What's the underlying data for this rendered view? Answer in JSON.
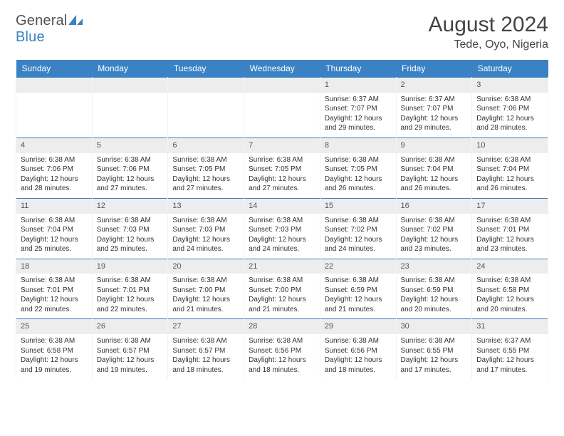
{
  "brand": {
    "part1": "General",
    "part2": "Blue"
  },
  "title": "August 2024",
  "location": "Tede, Oyo, Nigeria",
  "colors": {
    "header_bg": "#3a82c4",
    "header_fg": "#ffffff",
    "daynum_bg": "#ededed",
    "row_divider": "#3a82c4",
    "page_bg": "#ffffff",
    "text": "#333333"
  },
  "day_headers": [
    "Sunday",
    "Monday",
    "Tuesday",
    "Wednesday",
    "Thursday",
    "Friday",
    "Saturday"
  ],
  "weeks": [
    [
      null,
      null,
      null,
      null,
      {
        "n": "1",
        "sunrise": "6:37 AM",
        "sunset": "7:07 PM",
        "daylight": "12 hours and 29 minutes."
      },
      {
        "n": "2",
        "sunrise": "6:37 AM",
        "sunset": "7:07 PM",
        "daylight": "12 hours and 29 minutes."
      },
      {
        "n": "3",
        "sunrise": "6:38 AM",
        "sunset": "7:06 PM",
        "daylight": "12 hours and 28 minutes."
      }
    ],
    [
      {
        "n": "4",
        "sunrise": "6:38 AM",
        "sunset": "7:06 PM",
        "daylight": "12 hours and 28 minutes."
      },
      {
        "n": "5",
        "sunrise": "6:38 AM",
        "sunset": "7:06 PM",
        "daylight": "12 hours and 27 minutes."
      },
      {
        "n": "6",
        "sunrise": "6:38 AM",
        "sunset": "7:05 PM",
        "daylight": "12 hours and 27 minutes."
      },
      {
        "n": "7",
        "sunrise": "6:38 AM",
        "sunset": "7:05 PM",
        "daylight": "12 hours and 27 minutes."
      },
      {
        "n": "8",
        "sunrise": "6:38 AM",
        "sunset": "7:05 PM",
        "daylight": "12 hours and 26 minutes."
      },
      {
        "n": "9",
        "sunrise": "6:38 AM",
        "sunset": "7:04 PM",
        "daylight": "12 hours and 26 minutes."
      },
      {
        "n": "10",
        "sunrise": "6:38 AM",
        "sunset": "7:04 PM",
        "daylight": "12 hours and 26 minutes."
      }
    ],
    [
      {
        "n": "11",
        "sunrise": "6:38 AM",
        "sunset": "7:04 PM",
        "daylight": "12 hours and 25 minutes."
      },
      {
        "n": "12",
        "sunrise": "6:38 AM",
        "sunset": "7:03 PM",
        "daylight": "12 hours and 25 minutes."
      },
      {
        "n": "13",
        "sunrise": "6:38 AM",
        "sunset": "7:03 PM",
        "daylight": "12 hours and 24 minutes."
      },
      {
        "n": "14",
        "sunrise": "6:38 AM",
        "sunset": "7:03 PM",
        "daylight": "12 hours and 24 minutes."
      },
      {
        "n": "15",
        "sunrise": "6:38 AM",
        "sunset": "7:02 PM",
        "daylight": "12 hours and 24 minutes."
      },
      {
        "n": "16",
        "sunrise": "6:38 AM",
        "sunset": "7:02 PM",
        "daylight": "12 hours and 23 minutes."
      },
      {
        "n": "17",
        "sunrise": "6:38 AM",
        "sunset": "7:01 PM",
        "daylight": "12 hours and 23 minutes."
      }
    ],
    [
      {
        "n": "18",
        "sunrise": "6:38 AM",
        "sunset": "7:01 PM",
        "daylight": "12 hours and 22 minutes."
      },
      {
        "n": "19",
        "sunrise": "6:38 AM",
        "sunset": "7:01 PM",
        "daylight": "12 hours and 22 minutes."
      },
      {
        "n": "20",
        "sunrise": "6:38 AM",
        "sunset": "7:00 PM",
        "daylight": "12 hours and 21 minutes."
      },
      {
        "n": "21",
        "sunrise": "6:38 AM",
        "sunset": "7:00 PM",
        "daylight": "12 hours and 21 minutes."
      },
      {
        "n": "22",
        "sunrise": "6:38 AM",
        "sunset": "6:59 PM",
        "daylight": "12 hours and 21 minutes."
      },
      {
        "n": "23",
        "sunrise": "6:38 AM",
        "sunset": "6:59 PM",
        "daylight": "12 hours and 20 minutes."
      },
      {
        "n": "24",
        "sunrise": "6:38 AM",
        "sunset": "6:58 PM",
        "daylight": "12 hours and 20 minutes."
      }
    ],
    [
      {
        "n": "25",
        "sunrise": "6:38 AM",
        "sunset": "6:58 PM",
        "daylight": "12 hours and 19 minutes."
      },
      {
        "n": "26",
        "sunrise": "6:38 AM",
        "sunset": "6:57 PM",
        "daylight": "12 hours and 19 minutes."
      },
      {
        "n": "27",
        "sunrise": "6:38 AM",
        "sunset": "6:57 PM",
        "daylight": "12 hours and 18 minutes."
      },
      {
        "n": "28",
        "sunrise": "6:38 AM",
        "sunset": "6:56 PM",
        "daylight": "12 hours and 18 minutes."
      },
      {
        "n": "29",
        "sunrise": "6:38 AM",
        "sunset": "6:56 PM",
        "daylight": "12 hours and 18 minutes."
      },
      {
        "n": "30",
        "sunrise": "6:38 AM",
        "sunset": "6:55 PM",
        "daylight": "12 hours and 17 minutes."
      },
      {
        "n": "31",
        "sunrise": "6:37 AM",
        "sunset": "6:55 PM",
        "daylight": "12 hours and 17 minutes."
      }
    ]
  ],
  "labels": {
    "sunrise": "Sunrise:",
    "sunset": "Sunset:",
    "daylight": "Daylight:"
  }
}
